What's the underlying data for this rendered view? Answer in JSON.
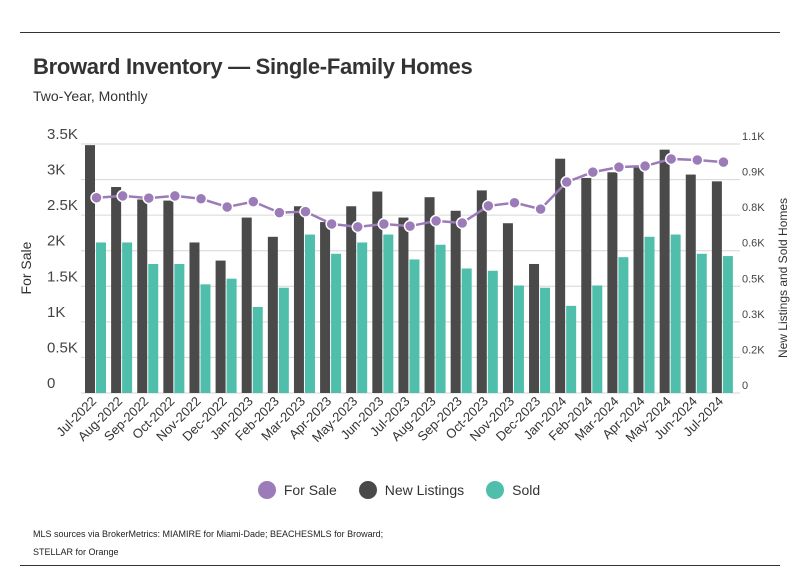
{
  "title": "Broward Inventory — Single-Family Homes",
  "subtitle": "Two-Year, Monthly",
  "footnote": [
    "MLS sources via BrokerMetrics: MIAMIRE for Miami-Dade; BEACHESMLS for Broward;",
    "STELLAR for Orange"
  ],
  "chart_data": {
    "type": "bar",
    "title": "Broward Inventory — Single-Family Homes",
    "ylabel": "For Sale",
    "ylabel_right": "New Listings and Sold Homes",
    "ylim": [
      0,
      3500
    ],
    "ylim_right": [
      0,
      1100
    ],
    "yticks": [
      "0",
      "0.5K",
      "1K",
      "1.5K",
      "2K",
      "2.5K",
      "3K",
      "3.5K"
    ],
    "yticks_right": [
      "0",
      "0.2K",
      "0.3K",
      "0.5K",
      "0.6K",
      "0.8K",
      "0.9K",
      "1.1K"
    ],
    "grid": true,
    "legend": "bottom",
    "categories": [
      "Jul-2022",
      "Aug-2022",
      "Sep-2022",
      "Oct-2022",
      "Nov-2022",
      "Dec-2022",
      "Jan-2023",
      "Feb-2023",
      "Mar-2023",
      "Apr-2023",
      "May-2023",
      "Jun-2023",
      "Jul-2023",
      "Aug-2023",
      "Sep-2023",
      "Oct-2023",
      "Nov-2023",
      "Dec-2023",
      "Jan-2024",
      "Feb-2024",
      "Mar-2024",
      "Apr-2024",
      "May-2024",
      "Jun-2024",
      "Jul-2024"
    ],
    "series": [
      {
        "name": "For Sale",
        "type": "line",
        "axis": "left",
        "color": "#9b7bb8",
        "values": [
          2745,
          2770,
          2740,
          2770,
          2730,
          2615,
          2690,
          2535,
          2550,
          2375,
          2335,
          2375,
          2345,
          2420,
          2390,
          2630,
          2675,
          2585,
          2965,
          3105,
          3175,
          3190,
          3290,
          3275,
          3245
        ]
      },
      {
        "name": "New Listings",
        "type": "bar",
        "axis": "right",
        "color": "#4a4a4a",
        "values": [
          1095,
          910,
          855,
          850,
          665,
          585,
          775,
          690,
          825,
          755,
          825,
          890,
          775,
          865,
          805,
          895,
          750,
          570,
          1035,
          950,
          975,
          1000,
          1075,
          965,
          935
        ]
      },
      {
        "name": "Sold",
        "type": "bar",
        "axis": "right",
        "color": "#4fbeab",
        "values": [
          665,
          665,
          570,
          570,
          480,
          505,
          380,
          465,
          700,
          615,
          665,
          700,
          590,
          655,
          550,
          540,
          475,
          465,
          385,
          475,
          600,
          690,
          700,
          615,
          605
        ]
      }
    ]
  }
}
